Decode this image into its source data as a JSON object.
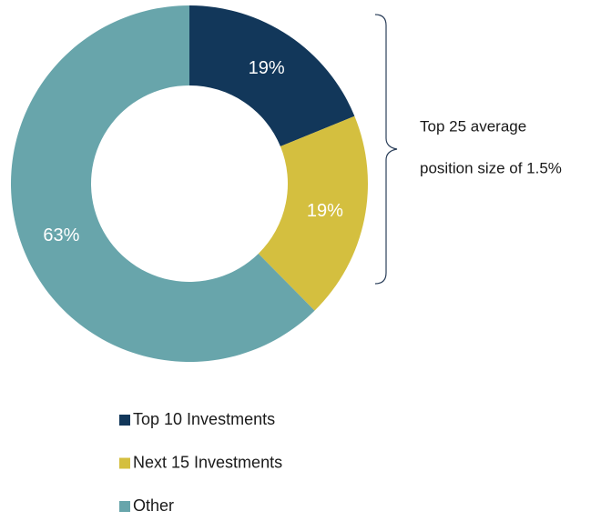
{
  "chart_data": {
    "type": "donut",
    "categories": [
      "Top 10 Investments",
      "Next 15 Investments",
      "Other"
    ],
    "values": [
      19,
      19,
      63
    ],
    "value_labels": [
      "19%",
      "19%",
      "63%"
    ],
    "colors": [
      "#12375a",
      "#d4bf3f",
      "#68a5ab"
    ],
    "annotation": [
      "Top 25 average",
      "position size of 1.5%"
    ],
    "legend": "bottom"
  }
}
